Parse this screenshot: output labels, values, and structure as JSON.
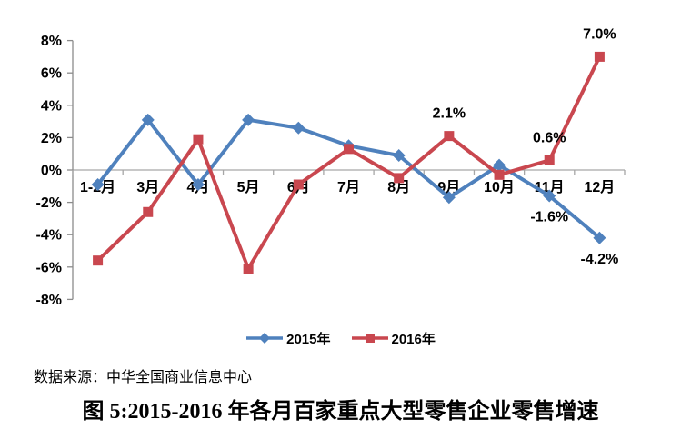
{
  "chart_data": {
    "type": "line",
    "title": "图 5:2015-2016 年各月百家重点大型零售企业零售增速",
    "source_note": "数据来源：中华全国商业信息中心",
    "categories": [
      "1-2月",
      "3月",
      "4月",
      "5月",
      "6月",
      "7月",
      "8月",
      "9月",
      "10月",
      "11月",
      "12月"
    ],
    "unit": "%",
    "ylim": [
      -8,
      8
    ],
    "ytick_step": 2,
    "ytick_labels": [
      "8%",
      "6%",
      "4%",
      "2%",
      "0%",
      "-2%",
      "-4%",
      "-6%",
      "-8%"
    ],
    "grid": "zero-line-only",
    "legend_position": "bottom-center",
    "axis_color": "#8c8c8c",
    "zero_line_color": "#a6a6a6",
    "label_color": "#000000",
    "series": [
      {
        "name": "2015年",
        "color": "#4F81BD",
        "marker": "diamond",
        "values": [
          -0.9,
          3.1,
          -0.9,
          3.1,
          2.6,
          1.5,
          0.9,
          -1.7,
          0.3,
          -1.6,
          -4.2
        ]
      },
      {
        "name": "2016年",
        "color": "#C9474F",
        "marker": "square",
        "values": [
          -5.6,
          -2.6,
          1.9,
          -6.1,
          -0.9,
          1.3,
          -0.5,
          2.1,
          -0.3,
          0.6,
          7.0
        ]
      }
    ],
    "point_labels": [
      {
        "series": "2016年",
        "category": "9月",
        "text": "2.1%",
        "position": "above"
      },
      {
        "series": "2016年",
        "category": "11月",
        "text": "0.6%",
        "position": "above"
      },
      {
        "series": "2016年",
        "category": "12月",
        "text": "7.0%",
        "position": "above"
      },
      {
        "series": "2015年",
        "category": "11月",
        "text": "-1.6%",
        "position": "below"
      },
      {
        "series": "2015年",
        "category": "12月",
        "text": "-4.2%",
        "position": "below"
      }
    ]
  }
}
